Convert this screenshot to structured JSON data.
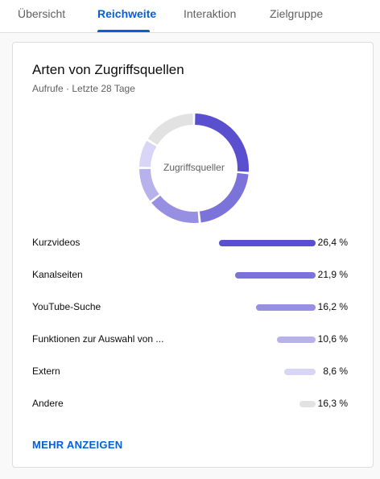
{
  "tabs": [
    {
      "label": "Übersicht",
      "active": false
    },
    {
      "label": "Reichweite",
      "active": true
    },
    {
      "label": "Interaktion",
      "active": false
    },
    {
      "label": "Zielgruppe",
      "active": false
    }
  ],
  "card": {
    "title": "Arten von Zugriffsquellen",
    "subtitle": "Aufrufe · Letzte 28 Tage",
    "donut_label": "Zugriffsquellen",
    "show_more": "MEHR ANZEIGEN"
  },
  "chart_data": {
    "type": "pie",
    "categories": [
      "Kurzvideos",
      "Kanalseiten",
      "YouTube-Suche",
      "Funktionen zur Auswahl von ...",
      "Extern",
      "Andere"
    ],
    "values": [
      26.4,
      21.9,
      16.2,
      10.6,
      8.6,
      16.3
    ],
    "value_labels": [
      "26,4 %",
      "21,9 %",
      "16,2 %",
      "10,6 %",
      "8,6 %",
      "16,3 %"
    ],
    "colors": [
      "#5a4fcf",
      "#7b72da",
      "#978fe2",
      "#b7b1ec",
      "#d8d5f6",
      "#e2e2e2"
    ]
  }
}
